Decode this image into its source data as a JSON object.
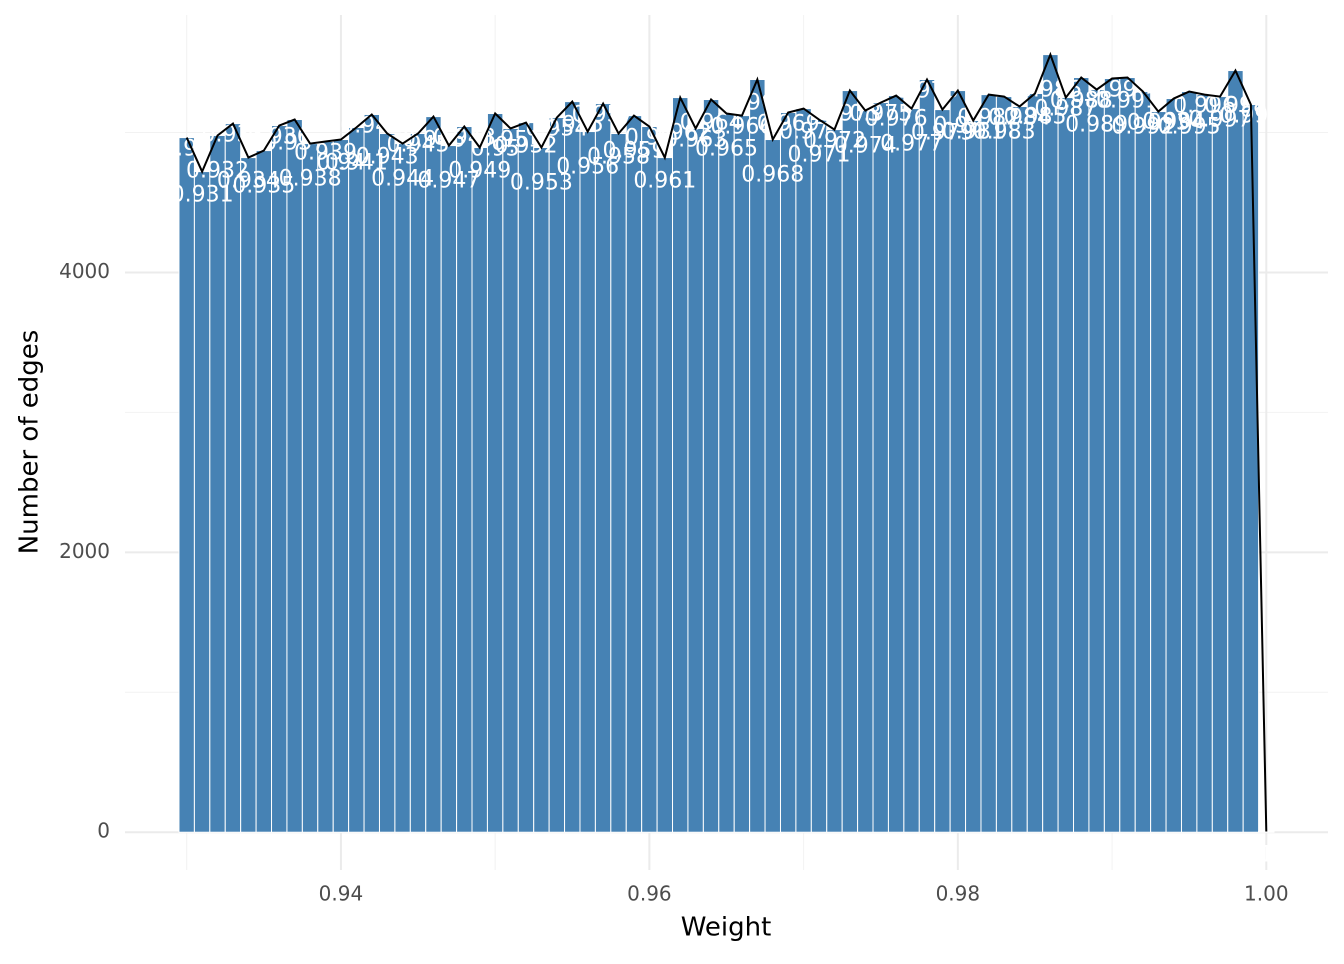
{
  "chart_data": {
    "type": "histogram",
    "xlabel": "Weight",
    "ylabel": "Number of edges",
    "bins": [
      0.9295,
      0.9305,
      0.9315,
      0.9325,
      0.9335,
      0.9345,
      0.9355,
      0.9365,
      0.9375,
      0.9385,
      0.9395,
      0.9405,
      0.9415,
      0.9425,
      0.9435,
      0.9445,
      0.9455,
      0.9465,
      0.9475,
      0.9485,
      0.9495,
      0.9505,
      0.9515,
      0.9525,
      0.9535,
      0.9545,
      0.9555,
      0.9565,
      0.9575,
      0.9585,
      0.9595,
      0.9605,
      0.9615,
      0.9625,
      0.9635,
      0.9645,
      0.9655,
      0.9665,
      0.9675,
      0.9685,
      0.9695,
      0.9705,
      0.9715,
      0.9725,
      0.9735,
      0.9745,
      0.9755,
      0.9765,
      0.9775,
      0.9785,
      0.9795,
      0.9805,
      0.9815,
      0.9825,
      0.9835,
      0.9845,
      0.9855,
      0.9865,
      0.9875,
      0.9885,
      0.9895,
      0.9905,
      0.9915,
      0.9925,
      0.9935,
      0.9945,
      0.9955,
      0.9965,
      0.9975,
      0.9985,
      0.9995,
      1.0005
    ],
    "x": [
      0.93,
      0.931,
      0.932,
      0.933,
      0.934,
      0.935,
      0.936,
      0.937,
      0.938,
      0.939,
      0.94,
      0.941,
      0.942,
      0.943,
      0.944,
      0.945,
      0.946,
      0.947,
      0.948,
      0.949,
      0.95,
      0.951,
      0.952,
      0.953,
      0.954,
      0.955,
      0.956,
      0.957,
      0.958,
      0.959,
      0.96,
      0.961,
      0.962,
      0.963,
      0.964,
      0.965,
      0.966,
      0.967,
      0.968,
      0.969,
      0.97,
      0.971,
      0.972,
      0.973,
      0.974,
      0.975,
      0.976,
      0.977,
      0.978,
      0.979,
      0.98,
      0.981,
      0.982,
      0.983,
      0.984,
      0.985,
      0.986,
      0.987,
      0.988,
      0.989,
      0.99,
      0.991,
      0.992,
      0.993,
      0.994,
      0.995,
      0.996,
      0.997,
      0.998,
      0.999,
      1.0
    ],
    "counts": [
      4964,
      4721,
      4979,
      5064,
      4821,
      4871,
      5050,
      5093,
      4921,
      4936,
      4950,
      5036,
      5129,
      4993,
      4921,
      4993,
      5114,
      4907,
      5043,
      4893,
      5136,
      5029,
      5071,
      4893,
      5107,
      5221,
      5007,
      5207,
      4993,
      5121,
      5043,
      4821,
      5250,
      5029,
      5236,
      5136,
      5121,
      5379,
      4950,
      5143,
      5171,
      5093,
      5021,
      5300,
      5157,
      5214,
      5264,
      5171,
      5379,
      5164,
      5300,
      5086,
      5271,
      5257,
      5186,
      5279,
      5557,
      5250,
      5393,
      5307,
      5386,
      5393,
      5293,
      5150,
      5243,
      5293,
      5271,
      5257,
      5443,
      5200,
      5
    ],
    "color": "#4682b4",
    "line_color": "#000000",
    "xlim": [
      0.926,
      1.004
    ],
    "ylim": [
      -270,
      5840
    ],
    "xticks": [
      0.94,
      0.96,
      0.98,
      {
        "value": 1,
        "label": "1.00"
      }
    ],
    "yticks": [
      0,
      2000,
      4000
    ],
    "xminor": [
      0.93,
      0.95,
      0.97,
      0.99
    ],
    "yminor": [
      1000,
      3000,
      5000
    ],
    "grid": true
  }
}
